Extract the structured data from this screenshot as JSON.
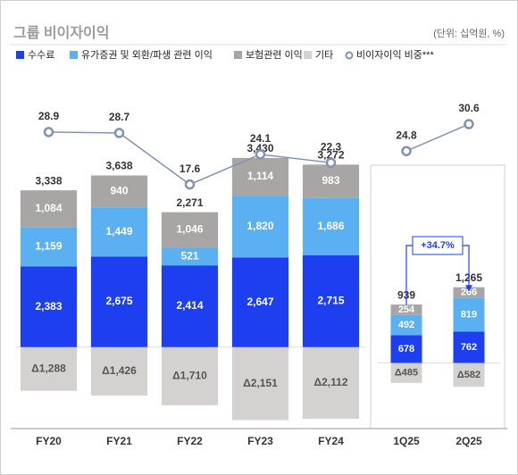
{
  "title": "그룹 비이자이익",
  "unit_note": "(단위: 십억원, %)",
  "chart_data": [
    {
      "type": "bar",
      "categories": [
        "FY20",
        "FY21",
        "FY22",
        "FY23",
        "FY24"
      ],
      "ylim": [
        -2400,
        8000
      ],
      "y2lim": [
        -35,
        41
      ],
      "series": [
        {
          "name": "수수료",
          "color": "#1e3ff0",
          "values": [
            2383,
            2675,
            2414,
            2647,
            2715
          ],
          "value_labels": [
            "2,383",
            "2,675",
            "2,414",
            "2,647",
            "2,715"
          ]
        },
        {
          "name": "유가증권 및 외환/파생 관련 이익",
          "color": "#5ab0f0",
          "values": [
            1159,
            1449,
            521,
            1820,
            1686
          ],
          "value_labels": [
            "1,159",
            "1,449",
            "521",
            "1,820",
            "1,686"
          ]
        },
        {
          "name": "보험관련 이익",
          "color": "#a8a5a5",
          "values": [
            1084,
            940,
            1046,
            1114,
            983
          ],
          "value_labels": [
            "1,084",
            "940",
            "1,046",
            "1,114",
            "983"
          ]
        },
        {
          "name": "기타",
          "color": "#d4d1d1",
          "values": [
            -1288,
            -1426,
            -1710,
            -2151,
            -2112
          ],
          "value_labels": [
            "Δ1,288",
            "Δ1,426",
            "Δ1,710",
            "Δ2,151",
            "Δ2,112"
          ]
        },
        {
          "name": "비이자이익 비중***",
          "axis": "y2",
          "color": "#8193b0",
          "values": [
            28.9,
            28.7,
            17.6,
            24.1,
            22.3
          ]
        }
      ],
      "totals": [
        3338,
        3638,
        2271,
        3430,
        3272
      ],
      "total_labels": [
        "3,338",
        "3,638",
        "2,271",
        "3,430",
        "3,272"
      ]
    },
    {
      "type": "bar",
      "categories": [
        "1Q25",
        "2Q25"
      ],
      "ylim": [
        -1600,
        7000
      ],
      "y2lim": [
        -35,
        41
      ],
      "series": [
        {
          "color": "#1e3ff0",
          "values": [
            678,
            762
          ]
        },
        {
          "color": "#5ab0f0",
          "values": [
            492,
            819
          ]
        },
        {
          "color": "#a8a5a5",
          "values": [
            254,
            266
          ]
        },
        {
          "color": "#d4d1d1",
          "values": [
            -485,
            -582
          ],
          "value_labels": [
            "Δ485",
            "Δ582"
          ]
        },
        {
          "axis": "y2",
          "color": "#8193b0",
          "values": [
            24.8,
            30.6
          ]
        }
      ],
      "totals": [
        939,
        1265
      ],
      "total_labels": [
        "939",
        "1,265"
      ],
      "annotation": "+34.7%"
    }
  ]
}
